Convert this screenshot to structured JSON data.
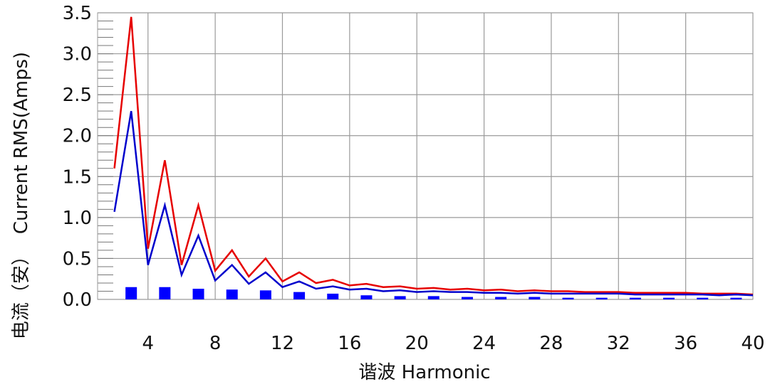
{
  "chart_data": {
    "type": "line",
    "title": "",
    "xlabel": "谐波 Harmonic",
    "ylabel": "电流（安） Current RMS(Amps)",
    "ylabel_parts": [
      "电流（安）",
      "Current RMS(Amps)"
    ],
    "xlim": [
      1,
      40
    ],
    "ylim": [
      0,
      3.5
    ],
    "x_ticks": [
      4,
      8,
      12,
      16,
      20,
      24,
      28,
      32,
      36,
      40
    ],
    "y_ticks": [
      0.0,
      0.5,
      1.0,
      1.5,
      2.0,
      2.5,
      3.0,
      3.5
    ],
    "y_tick_labels": [
      "0.0",
      "0.5",
      "1.0",
      "1.5",
      "2.0",
      "2.5",
      "3.0",
      "3.5"
    ],
    "grid": true,
    "x": [
      2,
      3,
      4,
      5,
      6,
      7,
      8,
      9,
      10,
      11,
      12,
      13,
      14,
      15,
      16,
      17,
      18,
      19,
      20,
      21,
      22,
      23,
      24,
      25,
      26,
      27,
      28,
      29,
      30,
      31,
      32,
      33,
      34,
      35,
      36,
      37,
      38,
      39,
      40
    ],
    "series": [
      {
        "style": "line",
        "color": "#e60000",
        "values": [
          1.6,
          3.45,
          0.62,
          1.7,
          0.42,
          1.15,
          0.35,
          0.6,
          0.28,
          0.5,
          0.22,
          0.33,
          0.2,
          0.24,
          0.17,
          0.19,
          0.15,
          0.16,
          0.13,
          0.14,
          0.12,
          0.13,
          0.11,
          0.12,
          0.1,
          0.11,
          0.1,
          0.1,
          0.09,
          0.09,
          0.09,
          0.08,
          0.08,
          0.08,
          0.08,
          0.07,
          0.07,
          0.07,
          0.06
        ]
      },
      {
        "style": "line",
        "color": "#0000cc",
        "values": [
          1.07,
          2.3,
          0.42,
          1.15,
          0.3,
          0.78,
          0.23,
          0.42,
          0.19,
          0.33,
          0.15,
          0.22,
          0.13,
          0.16,
          0.12,
          0.13,
          0.1,
          0.11,
          0.09,
          0.1,
          0.09,
          0.09,
          0.08,
          0.08,
          0.07,
          0.08,
          0.07,
          0.07,
          0.07,
          0.07,
          0.07,
          0.06,
          0.06,
          0.06,
          0.06,
          0.06,
          0.05,
          0.06,
          0.05
        ]
      },
      {
        "style": "bar",
        "color": "#0000ff",
        "x": [
          3,
          5,
          7,
          9,
          11,
          13,
          15,
          17,
          19,
          21,
          23,
          25,
          27,
          29,
          31,
          33,
          35,
          37,
          39
        ],
        "values": [
          0.15,
          0.15,
          0.13,
          0.12,
          0.11,
          0.09,
          0.07,
          0.05,
          0.04,
          0.04,
          0.03,
          0.03,
          0.03,
          0.02,
          0.02,
          0.02,
          0.02,
          0.02,
          0.02
        ]
      }
    ]
  }
}
